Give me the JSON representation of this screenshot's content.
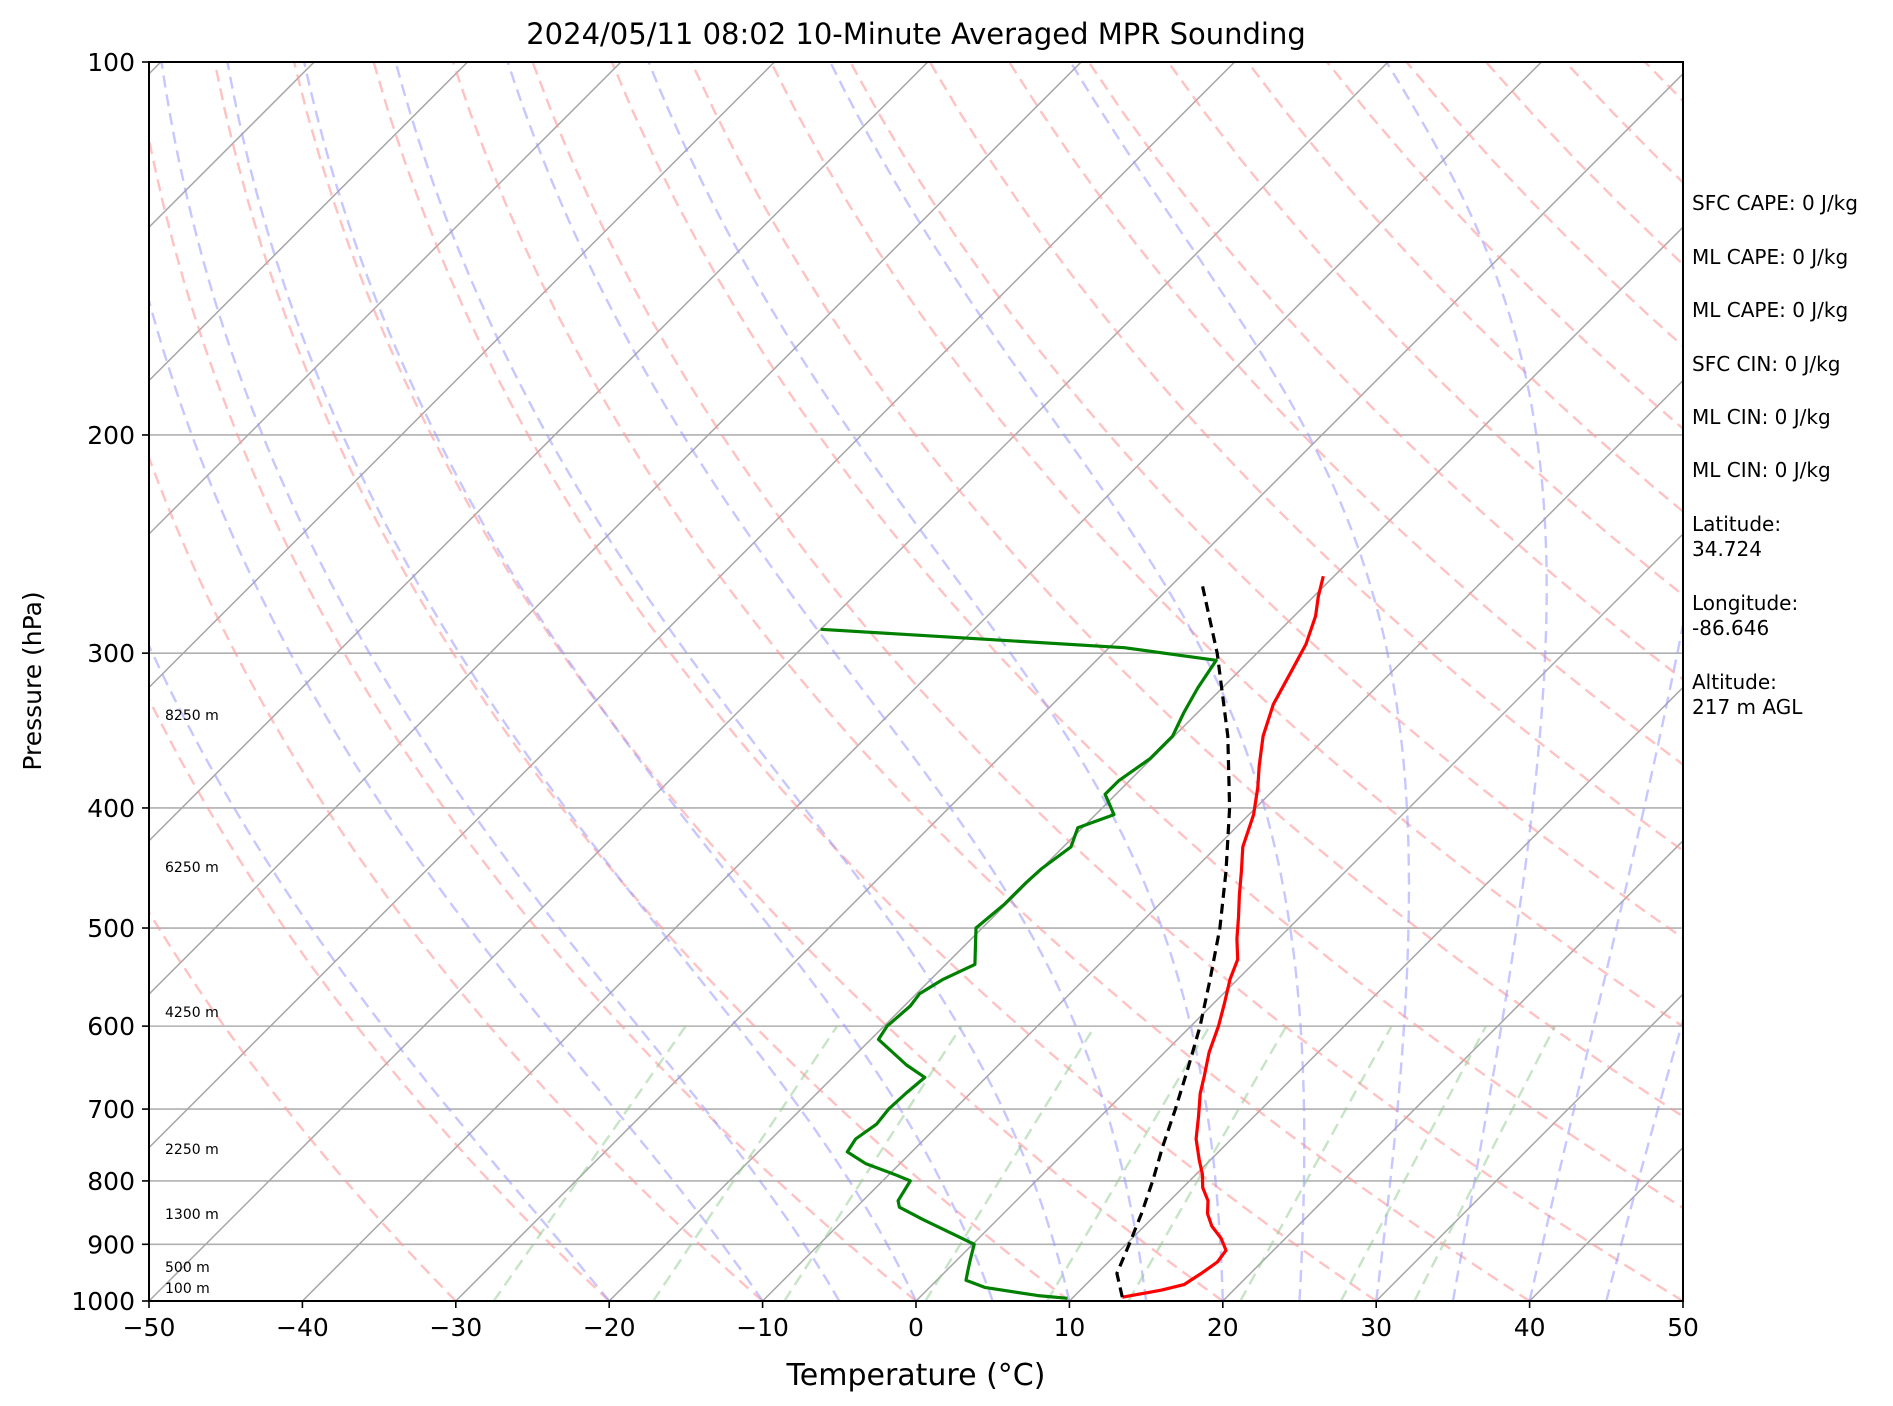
{
  "chart_data": {
    "type": "line",
    "title": "2024/05/11 08:02 10-Minute Averaged MPR Sounding",
    "xlabel": "Temperature (°C)",
    "ylabel": "Pressure (hPa)",
    "xlim": [
      -50,
      50
    ],
    "ylim": [
      1000,
      100
    ],
    "y_scale": "log",
    "skew": "skew-T",
    "x_ticks": [
      -50,
      -40,
      -30,
      -20,
      -10,
      0,
      10,
      20,
      30,
      40,
      50
    ],
    "x_tick_labels": [
      "−50",
      "−40",
      "−30",
      "−20",
      "−10",
      "0",
      "10",
      "20",
      "30",
      "40",
      "50"
    ],
    "y_ticks": [
      1000,
      900,
      800,
      700,
      600,
      500,
      400,
      300,
      200,
      100
    ],
    "y_tick_labels": [
      "1000",
      "900",
      "800",
      "700",
      "600",
      "500",
      "400",
      "300",
      "200",
      "100"
    ],
    "grid": true,
    "series": [
      {
        "color": "#ff0000",
        "points": [
          [
            993,
            13.2
          ],
          [
            980,
            15.3
          ],
          [
            970,
            16.4
          ],
          [
            950,
            16.8
          ],
          [
            930,
            17.1
          ],
          [
            910,
            16.9
          ],
          [
            890,
            15.8
          ],
          [
            870,
            14.4
          ],
          [
            850,
            13.3
          ],
          [
            830,
            12.5
          ],
          [
            810,
            11.3
          ],
          [
            790,
            10.4
          ],
          [
            770,
            9.3
          ],
          [
            740,
            7.7
          ],
          [
            710,
            6.4
          ],
          [
            680,
            5.0
          ],
          [
            660,
            4.2
          ],
          [
            630,
            2.9
          ],
          [
            600,
            1.8
          ],
          [
            575,
            0.7
          ],
          [
            550,
            -0.5
          ],
          [
            530,
            -1.3
          ],
          [
            510,
            -2.7
          ],
          [
            490,
            -4.0
          ],
          [
            470,
            -5.4
          ],
          [
            450,
            -6.8
          ],
          [
            430,
            -8.3
          ],
          [
            405,
            -9.7
          ],
          [
            385,
            -11.2
          ],
          [
            370,
            -12.5
          ],
          [
            350,
            -14.2
          ],
          [
            330,
            -15.6
          ],
          [
            310,
            -16.6
          ],
          [
            295,
            -17.4
          ],
          [
            280,
            -18.6
          ],
          [
            270,
            -19.7
          ],
          [
            260,
            -20.7
          ]
        ]
      },
      {
        "color": "#008000",
        "points": [
          [
            995,
            9.7
          ],
          [
            990,
            7.6
          ],
          [
            975,
            3.6
          ],
          [
            962,
            1.9
          ],
          [
            945,
            1.4
          ],
          [
            928,
            0.9
          ],
          [
            900,
            0.1
          ],
          [
            885,
            -1.7
          ],
          [
            860,
            -4.8
          ],
          [
            840,
            -7.2
          ],
          [
            830,
            -7.7
          ],
          [
            800,
            -8.2
          ],
          [
            790,
            -9.7
          ],
          [
            775,
            -12.2
          ],
          [
            758,
            -14.2
          ],
          [
            740,
            -14.5
          ],
          [
            720,
            -14.1
          ],
          [
            700,
            -14.3
          ],
          [
            680,
            -14.2
          ],
          [
            660,
            -14.0
          ],
          [
            645,
            -16.0
          ],
          [
            615,
            -19.5
          ],
          [
            600,
            -19.8
          ],
          [
            578,
            -19.6
          ],
          [
            565,
            -19.8
          ],
          [
            550,
            -19.2
          ],
          [
            535,
            -18.1
          ],
          [
            500,
            -20.4
          ],
          [
            478,
            -20.1
          ],
          [
            460,
            -20.1
          ],
          [
            448,
            -20.0
          ],
          [
            430,
            -19.5
          ],
          [
            415,
            -20.3
          ],
          [
            405,
            -18.8
          ],
          [
            390,
            -20.7
          ],
          [
            380,
            -20.7
          ],
          [
            365,
            -20.1
          ],
          [
            350,
            -20.1
          ],
          [
            335,
            -20.9
          ],
          [
            320,
            -21.6
          ],
          [
            304,
            -22.2
          ],
          [
            297,
            -29.0
          ],
          [
            287,
            -50.0
          ]
        ]
      },
      {
        "color": "#000000",
        "dashed": true,
        "points": [
          [
            993,
            13.2
          ],
          [
            950,
            11.3
          ],
          [
            900,
            10.2
          ],
          [
            850,
            9.0
          ],
          [
            800,
            7.6
          ],
          [
            750,
            6.0
          ],
          [
            700,
            4.4
          ],
          [
            650,
            2.6
          ],
          [
            600,
            0.6
          ],
          [
            550,
            -1.8
          ],
          [
            500,
            -4.5
          ],
          [
            450,
            -7.8
          ],
          [
            400,
            -11.7
          ],
          [
            350,
            -16.5
          ],
          [
            300,
            -22.6
          ],
          [
            265,
            -27.9
          ]
        ]
      }
    ],
    "height_labels": [
      "100 m",
      "500 m",
      "1300 m",
      "2250 m",
      "4250 m",
      "6250 m",
      "8250 m"
    ],
    "reference_lines": {
      "isotherms_color": "#a6a6a6",
      "dry_adiabats_color": "#ff9999",
      "moist_adiabats_color": "#9999ff",
      "mixing_ratio_color": "#8fc98f"
    },
    "annotations": [
      "SFC CAPE: 0 J/kg",
      "ML CAPE: 0 J/kg",
      "ML CAPE: 0 J/kg",
      "SFC CIN: 0 J/kg",
      "ML CIN: 0 J/kg",
      "ML CIN: 0 J/kg",
      "Latitude:\n34.724",
      "Longitude:\n-86.646",
      "Altitude:\n217 m AGL"
    ]
  }
}
